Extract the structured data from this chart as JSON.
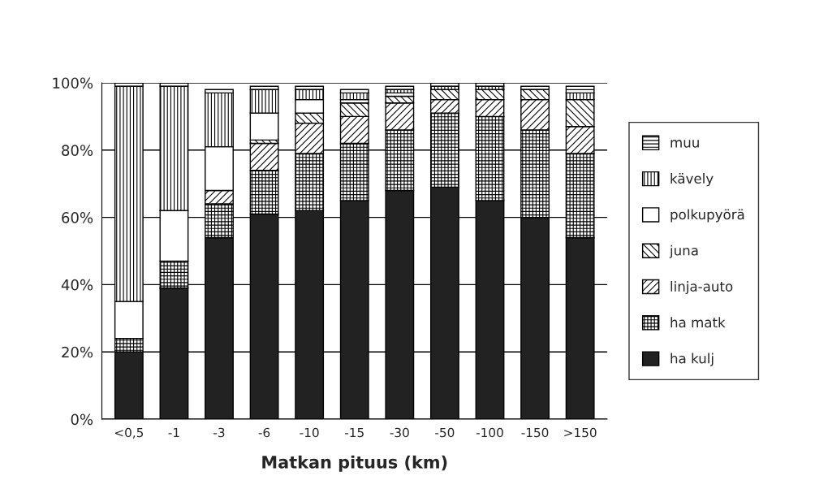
{
  "chart_data": {
    "type": "bar",
    "stacked": true,
    "xlabel": "Matkan pituus (km)",
    "categories": [
      "<0,5",
      "-1",
      "-3",
      "-6",
      "-10",
      "-15",
      "-30",
      "-50",
      "-100",
      "-150",
      ">150"
    ],
    "series": [
      {
        "name": "ha kulj",
        "color": "#222222",
        "values": [
          20,
          39,
          54,
          61,
          62,
          65,
          68,
          69,
          65,
          60,
          54
        ]
      },
      {
        "name": "ha matk",
        "color": "#000000",
        "values": [
          4,
          8,
          10,
          13,
          17,
          17,
          18,
          22,
          25,
          26,
          25
        ]
      },
      {
        "name": "linja-auto",
        "color": "#000000",
        "values": [
          0,
          0,
          4,
          8,
          9,
          8,
          8,
          4,
          5,
          9,
          8
        ]
      },
      {
        "name": "juna",
        "color": "#000000",
        "values": [
          0,
          0,
          0,
          1,
          3,
          4,
          2,
          3,
          3,
          3,
          8
        ]
      },
      {
        "name": "polkupyörä",
        "color": "#ffffff",
        "values": [
          11,
          15,
          13,
          8,
          4,
          1,
          1,
          0,
          0,
          0,
          0
        ]
      },
      {
        "name": "kävely",
        "color": "#000000",
        "values": [
          64,
          37,
          16,
          7,
          3,
          2,
          1,
          1,
          1,
          0,
          2
        ]
      },
      {
        "name": "muu",
        "color": "#000000",
        "values": [
          1,
          1,
          1,
          1,
          1,
          1,
          1,
          1,
          1,
          1,
          2
        ]
      }
    ],
    "ylim": [
      0,
      100
    ],
    "yticks": [
      {
        "value": 0,
        "label": "0%"
      },
      {
        "value": 20,
        "label": "20%"
      },
      {
        "value": 40,
        "label": "40%"
      },
      {
        "value": 60,
        "label": "60%"
      },
      {
        "value": 80,
        "label": "80%"
      },
      {
        "value": 100,
        "label": "100%"
      }
    ],
    "grid": "y",
    "legend": "right"
  }
}
